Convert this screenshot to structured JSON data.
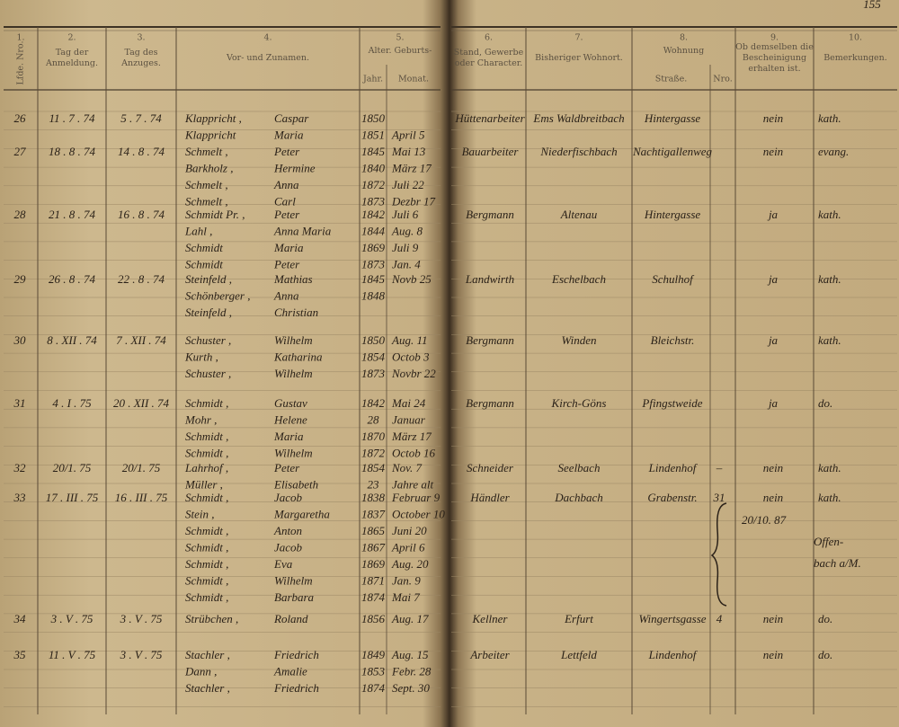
{
  "header": {
    "page_number": "155",
    "columns": [
      {
        "number": "1.",
        "label": "Lfde. Nro."
      },
      {
        "number": "2.",
        "label": "Tag der Anmeldung."
      },
      {
        "number": "3.",
        "label": "Tag des Anzuges."
      },
      {
        "number": "4.",
        "label": "Vor- und Zunamen."
      },
      {
        "number": "5.",
        "label": "Alter. Geburts-",
        "sub": [
          "Jahr.",
          "Monat."
        ]
      },
      {
        "number": "6.",
        "label": "Stand, Gewerbe oder Character."
      },
      {
        "number": "7.",
        "label": "Bisheriger Wohnort."
      },
      {
        "number": "8.",
        "label": "Wohnung",
        "sub": [
          "Straße.",
          "Nro."
        ]
      },
      {
        "number": "9.",
        "label": "Ob demselben die Bescheinigung erhalten ist."
      },
      {
        "number": "10.",
        "label": "Bemerkungen."
      }
    ]
  },
  "entries": [
    {
      "no": "26",
      "anmeldung": "11 . 7 . 74",
      "anzug": "5 . 7 . 74",
      "persons": [
        {
          "name": "Klappricht ,",
          "first_name": "Caspar",
          "year": "1850"
        },
        {
          "name": "Klappricht",
          "first_name": "Maria",
          "year": "1851",
          "month": "April 5"
        }
      ],
      "stand": "Hüttenarbeiter",
      "wohnort": "Ems Waldbreitbach",
      "strasse": "Hintergasse",
      "bescheinigung": "nein",
      "bemerkung": "kath."
    },
    {
      "no": "27",
      "anmeldung": "18 . 8 . 74",
      "anzug": "14 . 8 . 74",
      "persons": [
        {
          "name": "Schmelt ,",
          "first_name": "Peter",
          "year": "1845",
          "month": "Mai 13"
        },
        {
          "name": "Barkholz ,",
          "first_name": "Hermine",
          "year": "1840",
          "month": "März 17"
        },
        {
          "name": "Schmelt ,",
          "first_name": "Anna",
          "year": "1872",
          "month": "Juli 22"
        },
        {
          "name": "Schmelt ,",
          "first_name": "Carl",
          "year": "1873",
          "month": "Dezbr 17"
        }
      ],
      "stand": "Bauarbeiter",
      "wohnort": "Niederfischbach",
      "strasse": "Nachtigallenweg",
      "bescheinigung": "nein",
      "bemerkung": "evang."
    },
    {
      "no": "28",
      "anmeldung": "21 . 8 . 74",
      "anzug": "16 . 8 . 74",
      "persons": [
        {
          "name": "Schmidt Pr. ,",
          "first_name": "Peter",
          "year": "1842",
          "month": "Juli 6"
        },
        {
          "name": "Lahl ,",
          "first_name": "Anna Maria",
          "year": "1844",
          "month": "Aug. 8"
        },
        {
          "name": "Schmidt",
          "first_name": "Maria",
          "year": "1869",
          "month": "Juli 9"
        },
        {
          "name": "Schmidt",
          "first_name": "Peter",
          "year": "1873",
          "month": "Jan. 4"
        }
      ],
      "stand": "Bergmann",
      "wohnort": "Altenau",
      "strasse": "Hintergasse",
      "bescheinigung": "ja",
      "bemerkung": "kath."
    },
    {
      "no": "29",
      "anmeldung": "26 . 8 . 74",
      "anzug": "22 . 8 . 74",
      "persons": [
        {
          "name": "Steinfeld ,",
          "first_name": "Mathias",
          "year": "1845",
          "month": "Novb 25"
        },
        {
          "name": "Schönberger ,",
          "first_name": "Anna",
          "year": "1848"
        },
        {
          "name": "Steinfeld ,",
          "first_name": "Christian"
        }
      ],
      "stand": "Landwirth",
      "wohnort": "Eschelbach",
      "strasse": "Schulhof",
      "bescheinigung": "ja",
      "bemerkung": "kath."
    },
    {
      "no": "30",
      "anmeldung": "8 . XII . 74",
      "anzug": "7 . XII . 74",
      "persons": [
        {
          "name": "Schuster ,",
          "first_name": "Wilhelm",
          "year": "1850",
          "month": "Aug. 11"
        },
        {
          "name": "Kurth ,",
          "first_name": "Katharina",
          "year": "1854",
          "month": "Octob 3"
        },
        {
          "name": "Schuster ,",
          "first_name": "Wilhelm",
          "year": "1873",
          "month": "Novbr 22"
        }
      ],
      "stand": "Bergmann",
      "wohnort": "Winden",
      "strasse": "Bleichstr.",
      "bescheinigung": "ja",
      "bemerkung": "kath."
    },
    {
      "no": "31",
      "anmeldung": "4 . I . 75",
      "anzug": "20 . XII . 74",
      "persons": [
        {
          "name": "Schmidt ,",
          "first_name": "Gustav",
          "year": "1842",
          "month": "Mai 24"
        },
        {
          "name": "Mohr ,",
          "first_name": "Helene",
          "year": "28",
          "month": "Januar"
        },
        {
          "name": "Schmidt ,",
          "first_name": "Maria",
          "year": "1870",
          "month": "März 17"
        },
        {
          "name": "Schmidt ,",
          "first_name": "Wilhelm",
          "year": "1872",
          "month": "Octob 16"
        }
      ],
      "stand": "Bergmann",
      "wohnort": "Kirch-Göns",
      "strasse": "Pfingstweide",
      "bescheinigung": "ja",
      "bemerkung": "do."
    },
    {
      "no": "32",
      "anmeldung": "20/1. 75",
      "anzug": "20/1. 75",
      "persons": [
        {
          "name": "Lahrhof ,",
          "first_name": "Peter",
          "year": "1854",
          "month": "Nov. 7"
        },
        {
          "name": "Müller ,",
          "first_name": "Elisabeth",
          "year": "23",
          "month": "Jahre alt"
        }
      ],
      "stand": "Schneider",
      "wohnort": "Seelbach",
      "strasse": "Lindenhof",
      "nro": "–",
      "bescheinigung": "nein",
      "bemerkung": "kath."
    },
    {
      "no": "33",
      "anmeldung": "17 . III . 75",
      "anzug": "16 . III . 75",
      "persons": [
        {
          "name": "Schmidt ,",
          "first_name": "Jacob",
          "year": "1838",
          "month": "Februar 9"
        },
        {
          "name": "Stein ,",
          "first_name": "Margaretha",
          "year": "1837",
          "month": "October 10"
        },
        {
          "name": "Schmidt ,",
          "first_name": "Anton",
          "year": "1865",
          "month": "Juni 20"
        },
        {
          "name": "Schmidt ,",
          "first_name": "Jacob",
          "year": "1867",
          "month": "April 6"
        },
        {
          "name": "Schmidt ,",
          "first_name": "Eva",
          "year": "1869",
          "month": "Aug. 20"
        },
        {
          "name": "Schmidt ,",
          "first_name": "Wilhelm",
          "year": "1871",
          "month": "Jan. 9"
        },
        {
          "name": "Schmidt ,",
          "first_name": "Barbara",
          "year": "1874",
          "month": "Mai 7"
        }
      ],
      "stand": "Händler",
      "wohnort": "Dachbach",
      "strasse": "Grabenstr.",
      "nro": "31",
      "bescheinigung": "nein",
      "bemerkung": "kath.",
      "note": [
        "20/10. 87",
        "Offen-",
        "bach a/M."
      ]
    },
    {
      "no": "34",
      "anmeldung": "3 . V . 75",
      "anzug": "3 . V . 75",
      "persons": [
        {
          "name": "Strübchen ,",
          "first_name": "Roland",
          "year": "1856",
          "month": "Aug. 17"
        }
      ],
      "stand": "Kellner",
      "wohnort": "Erfurt",
      "strasse": "Wingertsgasse",
      "nro": "4",
      "bescheinigung": "nein",
      "bemerkung": "do."
    },
    {
      "no": "35",
      "anmeldung": "11 . V . 75",
      "anzug": "3 . V . 75",
      "persons": [
        {
          "name": "Stachler ,",
          "first_name": "Friedrich",
          "year": "1849",
          "month": "Aug. 15"
        },
        {
          "name": "Dann ,",
          "first_name": "Amalie",
          "year": "1853",
          "month": "Febr. 28"
        },
        {
          "name": "Stachler ,",
          "first_name": "Friedrich",
          "year": "1874",
          "month": "Sept. 30"
        }
      ],
      "stand": "Arbeiter",
      "wohnort": "Lettfeld",
      "strasse": "Lindenhof",
      "bescheinigung": "nein",
      "bemerkung": "do."
    }
  ]
}
